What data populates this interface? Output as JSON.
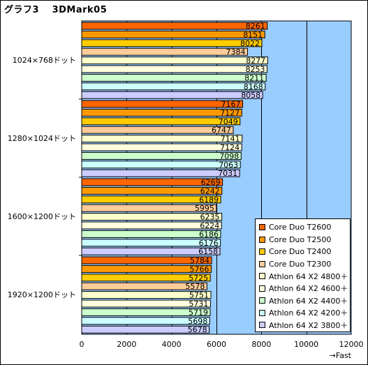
{
  "title": "グラフ3　 3DMark05",
  "chart_data": {
    "type": "bar",
    "orientation": "horizontal",
    "title": "グラフ3　 3DMark05",
    "x_axis_label": "→Fast",
    "xlim": [
      0,
      12000
    ],
    "xticks": [
      0,
      2000,
      4000,
      6000,
      8000,
      10000,
      12000
    ],
    "grid": true,
    "legend_position": "bottom-right",
    "categories": [
      "1024×768ドット",
      "1280×1024ドット",
      "1600×1200ドット",
      "1920×1200ドット"
    ],
    "series": [
      {
        "name": "Core Duo  T2600",
        "color": "#ff6600",
        "values": [
          8261,
          7167,
          6269,
          5784
        ]
      },
      {
        "name": "Core Duo  T2500",
        "color": "#ff9900",
        "values": [
          8151,
          7127,
          6242,
          5766
        ]
      },
      {
        "name": "Core Duo  T2400",
        "color": "#ffcc00",
        "values": [
          8022,
          7049,
          6189,
          5725
        ]
      },
      {
        "name": "Core Duo  T2300",
        "color": "#ffcc99",
        "values": [
          7384,
          6747,
          5995,
          5578
        ]
      },
      {
        "name": "Athlon 64  X2 4800＋",
        "color": "#ffffcc",
        "values": [
          8277,
          7141,
          6235,
          5751
        ]
      },
      {
        "name": "Athlon 64  X2 4600＋",
        "color": "#ffffdd",
        "values": [
          8253,
          7124,
          6224,
          5731
        ]
      },
      {
        "name": "Athlon 64  X2 4400＋",
        "color": "#ccffcc",
        "values": [
          8211,
          7098,
          6186,
          5719
        ]
      },
      {
        "name": "Athlon 64  X2 4200＋",
        "color": "#ccffff",
        "values": [
          8168,
          7063,
          6176,
          5698
        ]
      },
      {
        "name": "Athlon 64  X2 3800＋",
        "color": "#ccccff",
        "values": [
          8058,
          7031,
          6158,
          5678
        ]
      }
    ]
  },
  "colors": {
    "plot_background": "#99ccff",
    "gridline": "#000000"
  }
}
